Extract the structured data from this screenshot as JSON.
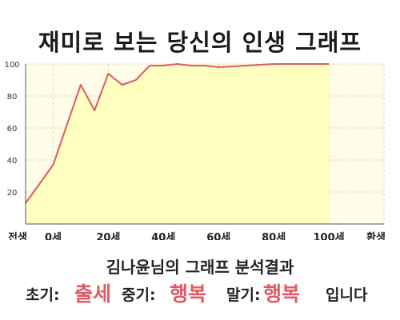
{
  "title": "재미로 보는 당신의 인생 그래프",
  "subtitle": "김나윤님의 그래프 분석결과",
  "results": {
    "early_label": "초기:",
    "early_value": "출세",
    "mid_label": "중기:",
    "mid_value": "행복",
    "late_label": "말기:",
    "late_value": "행복",
    "ending": "입니다"
  },
  "colors": {
    "line": "#e05a66",
    "fill": "#ffffc0",
    "accent_text": "#e05a66"
  },
  "chart_data": {
    "type": "area",
    "x": [
      0,
      10,
      20,
      25,
      30,
      35,
      40,
      45,
      50,
      55,
      60,
      65,
      70,
      80,
      90,
      100,
      110
    ],
    "values": [
      13,
      37,
      87,
      71,
      94,
      87,
      90,
      99,
      99,
      100,
      99,
      99,
      98,
      99,
      100,
      100,
      100
    ],
    "x_tick_positions": [
      0,
      10,
      30,
      50,
      70,
      90,
      110,
      130
    ],
    "x_tick_labels": [
      "전생",
      "0세",
      "20세",
      "40세",
      "60세",
      "80세",
      "100세",
      "환생"
    ],
    "y_ticks": [
      20,
      40,
      60,
      80,
      100
    ],
    "xlim": [
      0,
      130
    ],
    "ylim": [
      0,
      100
    ],
    "grid": true
  }
}
